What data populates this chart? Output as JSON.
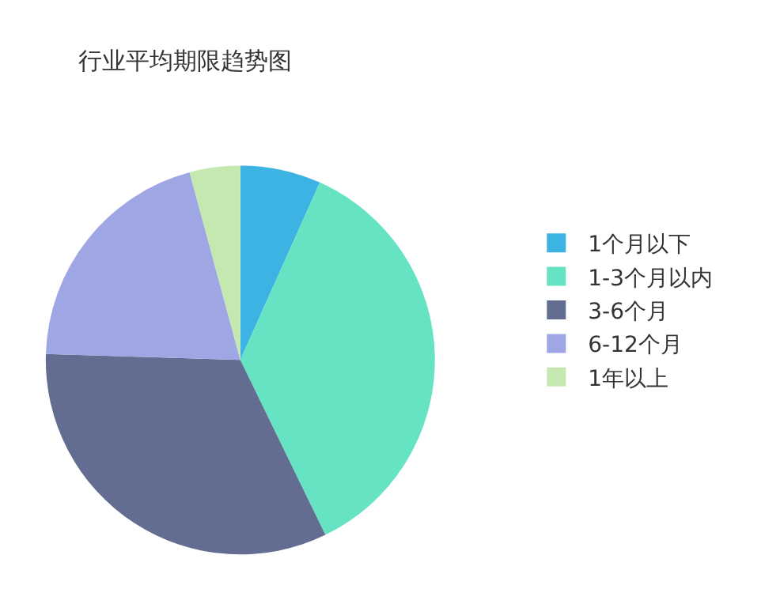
{
  "chart_data": {
    "type": "pie",
    "title": "行业平均期限趋势图",
    "categories": [
      "1个月以下",
      "1-3个月以内",
      "3-6个月",
      "6-12个月",
      "1年以上"
    ],
    "values": [
      6.7,
      36.1,
      32.7,
      20.3,
      4.2
    ],
    "colors": [
      "#3db3e3",
      "#66e3c2",
      "#636d91",
      "#9ea7e4",
      "#c4e8b0"
    ],
    "legend": "right"
  }
}
